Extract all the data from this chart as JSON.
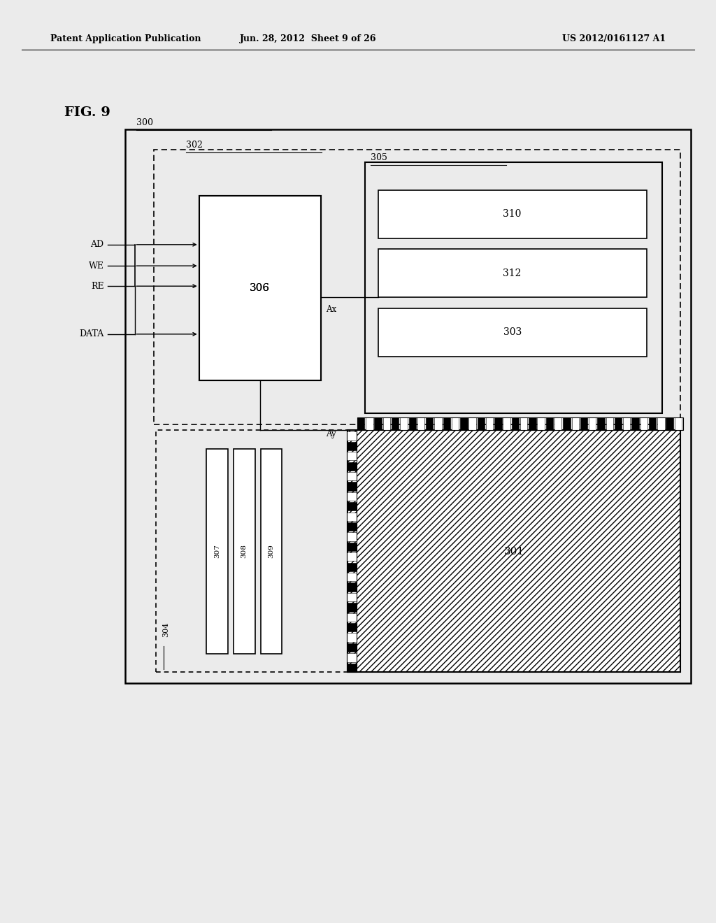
{
  "bg_color": "#ebebeb",
  "header_text1": "Patent Application Publication",
  "header_text2": "Jun. 28, 2012  Sheet 9 of 26",
  "header_text3": "US 2012/0161127 A1",
  "fig_label": "FIG. 9"
}
